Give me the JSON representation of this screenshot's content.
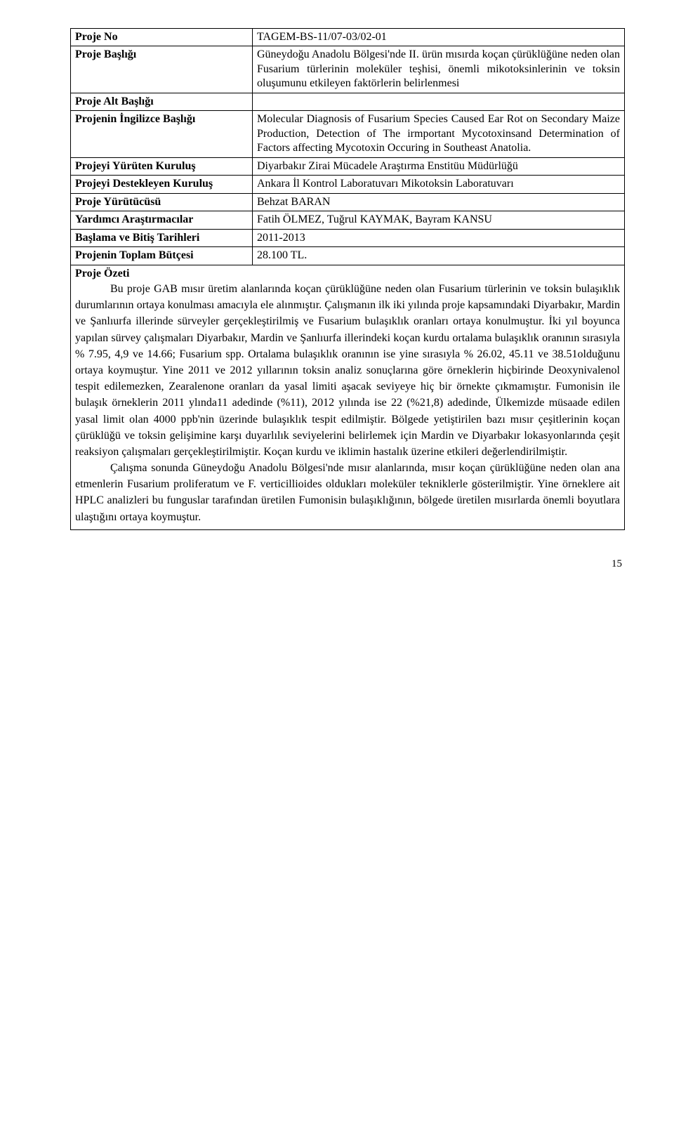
{
  "rows": {
    "projeNo": {
      "label": "Proje No",
      "value": "TAGEM-BS-11/07-03/02-01"
    },
    "projeBasligi": {
      "label": "Proje Başlığı",
      "value": "Güneydoğu Anadolu Bölgesi'nde II. ürün mısırda koçan çürüklüğüne neden olan Fusarium türlerinin moleküler teşhisi, önemli mikotoksinlerinin ve toksin oluşumunu etkileyen faktörlerin belirlenmesi"
    },
    "projeAlt": {
      "label": "Proje Alt Başlığı",
      "value": ""
    },
    "ingilizce": {
      "label": "Projenin İngilizce Başlığı",
      "value": "Molecular Diagnosis of Fusarium Species Caused Ear Rot on Secondary Maize Production, Detection of The irmportant Mycotoxinsand Determination of Factors affecting Mycotoxin Occuring in Southeast Anatolia."
    },
    "yuruten": {
      "label": "Projeyi Yürüten Kuruluş",
      "value": "Diyarbakır Zirai Mücadele Araştırma Enstitüu Müdürlüğü"
    },
    "destekleyen": {
      "label": "Projeyi Destekleyen Kuruluş",
      "value": "Ankara İl Kontrol Laboratuvarı Mikotoksin Laboratuvarı"
    },
    "yurutucusu": {
      "label": "Proje Yürütücüsü",
      "value": "Behzat BARAN"
    },
    "yardimci": {
      "label": "Yardımcı Araştırmacılar",
      "value": "Fatih ÖLMEZ, Tuğrul KAYMAK, Bayram KANSU"
    },
    "tarihler": {
      "label": "Başlama ve Bitiş Tarihleri",
      "value": "2011-2013"
    },
    "butce": {
      "label": "Projenin Toplam Bütçesi",
      "value": "28.100 TL."
    },
    "ozetiLabel": {
      "label": "Proje Özeti"
    }
  },
  "summary": {
    "p1": "Bu proje GAB mısır üretim alanlarında koçan çürüklüğüne neden olan Fusarium türlerinin ve toksin bulaşıklık durumlarının ortaya konulması amacıyla ele alınmıştır. Çalışmanın ilk iki yılında proje kapsamındaki Diyarbakır, Mardin ve Şanlıurfa illerinde sürveyler gerçekleştirilmiş ve Fusarium bulaşıklık oranları ortaya konulmuştur. İki yıl boyunca yapılan sürvey çalışmaları Diyarbakır, Mardin ve Şanlıurfa illerindeki koçan kurdu ortalama bulaşıklık oranının sırasıyla % 7.95, 4,9 ve 14.66; Fusarium spp. Ortalama bulaşıklık oranının ise yine sırasıyla % 26.02, 45.11 ve 38.51olduğunu ortaya koymuştur. Yine 2011 ve 2012 yıllarının toksin analiz sonuçlarına göre örneklerin hiçbirinde Deoxynivalenol tespit edilemezken, Zearalenone oranları da yasal limiti aşacak seviyeye hiç bir örnekte çıkmamıştır. Fumonisin ile bulaşık örneklerin 2011 ylında11 adedinde (%11), 2012 yılında ise 22 (%21,8) adedinde, Ülkemizde müsaade edilen yasal limit olan 4000 ppb'nin üzerinde bulaşıklık tespit edilmiştir. Bölgede yetiştirilen bazı mısır çeşitlerinin koçan çürüklüğü ve toksin gelişimine karşı duyarlılık seviyelerini belirlemek için Mardin ve Diyarbakır lokasyonlarında çeşit reaksiyon çalışmaları gerçekleştirilmiştir. Koçan kurdu ve iklimin hastalık üzerine etkileri değerlendirilmiştir.",
    "p2": "Çalışma sonunda Güneydoğu Anadolu Bölgesi'nde mısır alanlarında, mısır koçan çürüklüğüne neden olan ana etmenlerin Fusarium proliferatum ve F. verticillioides oldukları moleküler tekniklerle gösterilmiştir. Yine örneklere ait HPLC analizleri bu funguslar tarafından üretilen Fumonisin bulaşıklığının, bölgede üretilen mısırlarda önemli boyutlara ulaştığını ortaya koymuştur."
  },
  "pageNumber": "15"
}
